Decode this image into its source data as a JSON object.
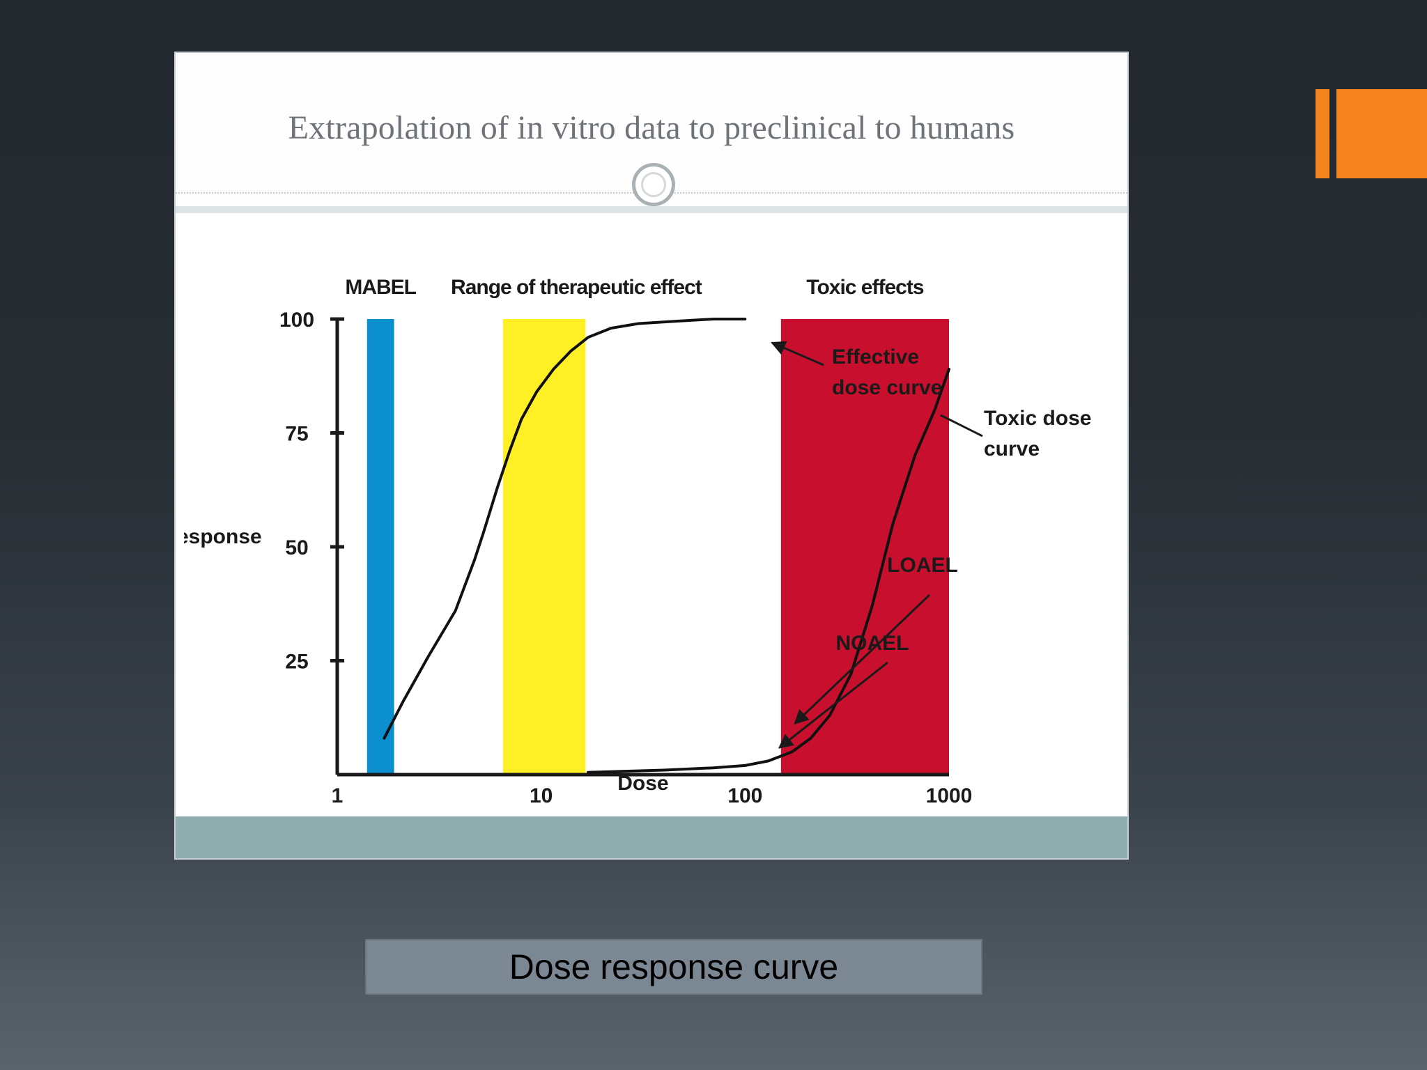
{
  "slide": {
    "title": "Extrapolation of in vitro data to preclinical to humans",
    "caption": "Dose response curve"
  },
  "colors": {
    "mabel_band": "#0b8fcf",
    "therapeutic_band": "#ffef25",
    "toxic_band": "#c8102e",
    "accent": "#f5841f",
    "footer_band": "#8fadae"
  },
  "chart_data": {
    "type": "line",
    "xlabel": "Dose",
    "ylabel": "Response",
    "x_scale": "log",
    "xlim": [
      1,
      1000
    ],
    "ylim": [
      0,
      100
    ],
    "x_ticks": [
      "1",
      "10",
      "100",
      "1000"
    ],
    "y_ticks": [
      "25",
      "50",
      "75",
      "100"
    ],
    "bands": [
      {
        "label": "MABEL",
        "x_start": 1.4,
        "x_end": 1.9,
        "color": "#0b8fcf"
      },
      {
        "label": "Range of therapeutic effect",
        "x_start": 6.5,
        "x_end": 16.5,
        "color": "#ffef25"
      },
      {
        "label": "Toxic effects",
        "x_start": 150,
        "x_end": 1000,
        "color": "#c8102e"
      }
    ],
    "series": [
      {
        "name": "Effective dose curve",
        "x": [
          1.7,
          2.1,
          2.8,
          3.8,
          4.7,
          5.2,
          6.1,
          7.0,
          8.0,
          9.5,
          11.5,
          14.0,
          17.0,
          22.0,
          30.0,
          45.0,
          70.0,
          100.0
        ],
        "y": [
          8,
          16,
          26,
          36,
          47,
          53,
          63,
          71,
          78,
          84,
          89,
          93,
          96,
          98,
          99,
          99.5,
          100,
          100
        ]
      },
      {
        "name": "Toxic dose curve",
        "x": [
          17,
          40,
          70,
          100,
          130,
          170,
          210,
          260,
          330,
          420,
          530,
          680,
          850,
          1000
        ],
        "y": [
          0.5,
          1,
          1.5,
          2,
          3,
          5,
          8,
          13,
          22,
          37,
          55,
          70,
          80,
          89
        ]
      }
    ],
    "annotations": [
      {
        "text": "Effective",
        "second_line": "dose curve",
        "target_series": "Effective dose curve"
      },
      {
        "text": "Toxic dose",
        "second_line": "curve",
        "target_series": "Toxic dose curve"
      },
      {
        "text": "NOAEL",
        "arrow_to_x": 145,
        "arrow_to_y": 5
      },
      {
        "text": "LOAEL",
        "arrow_to_x": 170,
        "arrow_to_y": 10
      }
    ]
  }
}
